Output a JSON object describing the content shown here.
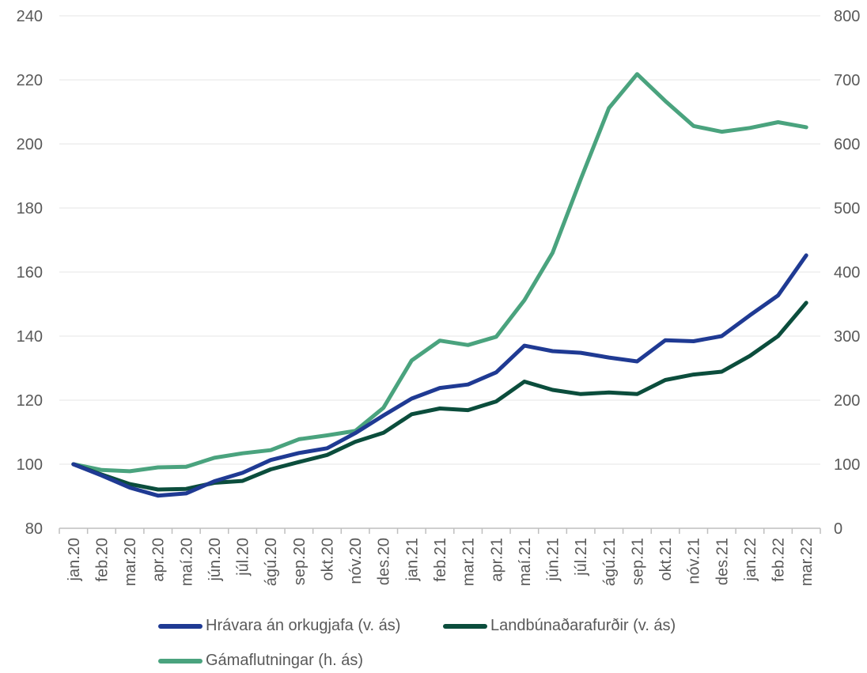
{
  "chart_data": {
    "type": "line",
    "title": "",
    "xlabel": "",
    "ylabel": "",
    "categories": [
      "jan.20",
      "feb.20",
      "mar.20",
      "apr.20",
      "maí.20",
      "jún.20",
      "júl.20",
      "ágú.20",
      "sep.20",
      "okt.20",
      "nóv.20",
      "des.20",
      "jan.21",
      "feb.21",
      "mar.21",
      "apr.21",
      "maí.21",
      "jún.21",
      "júl.21",
      "ágú.21",
      "sep.21",
      "okt.21",
      "nóv.21",
      "des.21",
      "jan.22",
      "feb.22",
      "mar.22"
    ],
    "y_left": {
      "lim": [
        80,
        240
      ],
      "ticks": [
        "80",
        "100",
        "120",
        "140",
        "160",
        "180",
        "200",
        "220",
        "240"
      ]
    },
    "y_right": {
      "lim": [
        0,
        800
      ],
      "ticks": [
        "0",
        "100",
        "200",
        "300",
        "400",
        "500",
        "600",
        "700",
        "800"
      ]
    },
    "grid": true,
    "legend_position": "bottom",
    "series": [
      {
        "name": "Hrávara án orkugjafa (v. ás)",
        "axis": "left",
        "color": "#1f3a93",
        "values": [
          100,
          96.5,
          92.7,
          90.2,
          90.9,
          94.7,
          97.3,
          101.3,
          103.5,
          105.0,
          109.7,
          115.2,
          120.5,
          123.8,
          124.9,
          128.7,
          137.0,
          135.3,
          134.8,
          133.3,
          132.1,
          138.7,
          138.4,
          140.0,
          146.5,
          152.7,
          165.2
        ]
      },
      {
        "name": "Landbúnaðarafurðir (v. ás)",
        "axis": "left",
        "color": "#0b4d3c",
        "values": [
          100,
          96.8,
          93.8,
          92.1,
          92.3,
          94.2,
          94.8,
          98.4,
          100.7,
          102.9,
          107.0,
          109.8,
          115.6,
          117.4,
          116.9,
          119.6,
          125.8,
          123.2,
          121.9,
          122.4,
          121.9,
          126.3,
          128.0,
          128.9,
          133.8,
          140.0,
          150.4
        ]
      },
      {
        "name": "Gámaflutningar (h. ás)",
        "axis": "right",
        "color": "#4aa37e",
        "values": [
          100,
          91,
          89,
          95,
          96,
          110,
          117,
          122,
          139,
          145,
          152,
          188,
          262,
          293,
          286,
          299,
          356,
          430,
          545,
          656,
          709,
          667,
          628,
          619,
          625,
          634,
          626
        ]
      }
    ]
  }
}
